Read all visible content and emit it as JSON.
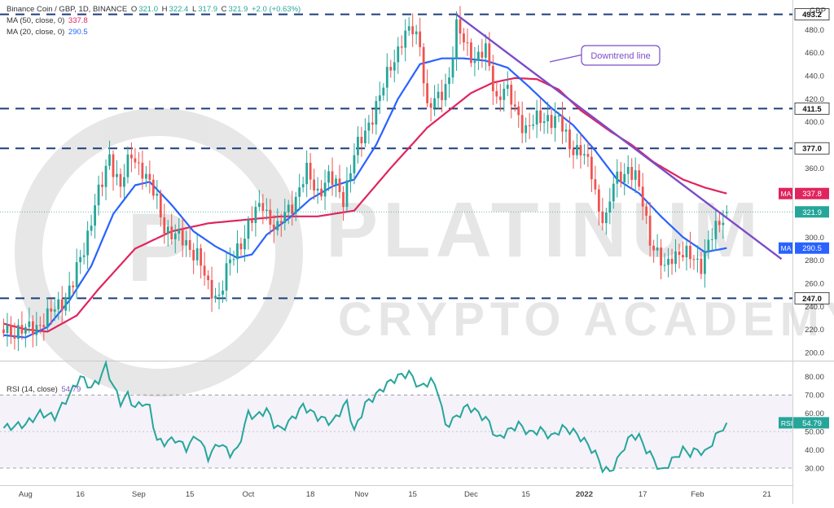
{
  "legend": {
    "symbol": "Binance Coin / GBP, 1D, BINANCE",
    "ohlc": {
      "o_label": "O",
      "o": "321.0",
      "h_label": "H",
      "h": "322.4",
      "l_label": "L",
      "l": "317.9",
      "c_label": "C",
      "c": "321.9",
      "change": "+2.0 (+0.63%)"
    },
    "ma50_label": "MA (50, close, 0)",
    "ma50_value": "337.8",
    "ma20_label": "MA (20, close, 0)",
    "ma20_value": "290.5",
    "rsi_label": "RSI (14, close)",
    "rsi_value": "54.79"
  },
  "currency": "GBP",
  "annotation": "Downtrend line",
  "watermark": {
    "line1": "PLATINUM",
    "line2": "CRYPTO ACADEMY"
  },
  "colors": {
    "up": "#26a69a",
    "down": "#ef5350",
    "ma50": "#e0245e",
    "ma20": "#2962ff",
    "rsi": "#26a69a",
    "trendline": "#7b4cc9",
    "level": "#1e3f7a"
  },
  "chart_data": [
    {
      "type": "candlestick",
      "title": "Binance Coin / GBP, 1D, BINANCE",
      "ylim": [
        195,
        500
      ],
      "y_ticks": [
        200,
        220,
        240,
        260,
        280,
        300,
        320,
        340,
        360,
        380,
        400,
        420,
        440,
        460,
        480
      ],
      "x_ticks": [
        "Aug",
        "16",
        "Sep",
        "15",
        "Oct",
        "18",
        "Nov",
        "15",
        "Dec",
        "15",
        "2022",
        "17",
        "Feb",
        "21"
      ],
      "x_tick_days": [
        0,
        15,
        31,
        45,
        61,
        78,
        92,
        106,
        122,
        137,
        153,
        169,
        184,
        203
      ],
      "x_range": [
        -7,
        210
      ],
      "horizontal_levels": [
        {
          "value": 493.2,
          "label": "493.2"
        },
        {
          "value": 411.5,
          "label": "411.5"
        },
        {
          "value": 377.0,
          "label": "377.0"
        },
        {
          "value": 247.0,
          "label": "247.0"
        }
      ],
      "current_price": {
        "value": 321.9,
        "label": "321.9"
      },
      "ma50_tag": {
        "label": "MA",
        "value": 337.8,
        "text": "337.8"
      },
      "ma20_tag": {
        "label": "MA",
        "value": 290.5,
        "text": "290.5"
      },
      "trendline": {
        "from": {
          "day": 118,
          "price": 493
        },
        "to": {
          "day": 207,
          "price": 281
        }
      },
      "close_anchors": [
        [
          -6,
          220
        ],
        [
          0,
          218
        ],
        [
          6,
          230
        ],
        [
          10,
          245
        ],
        [
          13,
          260
        ],
        [
          16,
          290
        ],
        [
          19,
          330
        ],
        [
          21,
          345
        ],
        [
          23,
          370
        ],
        [
          26,
          345
        ],
        [
          29,
          370
        ],
        [
          32,
          360
        ],
        [
          36,
          330
        ],
        [
          38,
          310
        ],
        [
          41,
          300
        ],
        [
          44,
          295
        ],
        [
          47,
          285
        ],
        [
          50,
          255
        ],
        [
          53,
          250
        ],
        [
          55,
          270
        ],
        [
          58,
          290
        ],
        [
          61,
          310
        ],
        [
          63,
          320
        ],
        [
          65,
          330
        ],
        [
          67,
          315
        ],
        [
          69,
          305
        ],
        [
          71,
          320
        ],
        [
          74,
          335
        ],
        [
          77,
          355
        ],
        [
          80,
          340
        ],
        [
          83,
          350
        ],
        [
          85,
          345
        ],
        [
          87,
          335
        ],
        [
          90,
          370
        ],
        [
          94,
          400
        ],
        [
          97,
          420
        ],
        [
          100,
          450
        ],
        [
          103,
          470
        ],
        [
          106,
          480
        ],
        [
          108,
          470
        ],
        [
          110,
          410
        ],
        [
          113,
          420
        ],
        [
          116,
          440
        ],
        [
          118,
          480
        ],
        [
          120,
          470
        ],
        [
          123,
          455
        ],
        [
          126,
          460
        ],
        [
          129,
          420
        ],
        [
          131,
          430
        ],
        [
          134,
          410
        ],
        [
          137,
          395
        ],
        [
          140,
          400
        ],
        [
          143,
          405
        ],
        [
          146,
          400
        ],
        [
          149,
          380
        ],
        [
          152,
          375
        ],
        [
          155,
          355
        ],
        [
          157,
          325
        ],
        [
          159,
          315
        ],
        [
          161,
          345
        ],
        [
          163,
          355
        ],
        [
          165,
          360
        ],
        [
          167,
          350
        ],
        [
          169,
          330
        ],
        [
          171,
          300
        ],
        [
          173,
          285
        ],
        [
          175,
          270
        ],
        [
          177,
          285
        ],
        [
          179,
          288
        ],
        [
          181,
          283
        ],
        [
          183,
          280
        ],
        [
          185,
          278
        ],
        [
          187,
          295
        ],
        [
          189,
          305
        ],
        [
          191,
          318
        ],
        [
          192,
          321.9
        ]
      ],
      "ma20_anchors": [
        [
          -6,
          215
        ],
        [
          0,
          213
        ],
        [
          6,
          222
        ],
        [
          12,
          245
        ],
        [
          18,
          275
        ],
        [
          24,
          320
        ],
        [
          30,
          345
        ],
        [
          34,
          348
        ],
        [
          40,
          328
        ],
        [
          46,
          305
        ],
        [
          52,
          292
        ],
        [
          58,
          282
        ],
        [
          62,
          285
        ],
        [
          66,
          302
        ],
        [
          72,
          316
        ],
        [
          78,
          333
        ],
        [
          84,
          344
        ],
        [
          90,
          350
        ],
        [
          96,
          380
        ],
        [
          102,
          420
        ],
        [
          108,
          450
        ],
        [
          114,
          455
        ],
        [
          120,
          455
        ],
        [
          126,
          453
        ],
        [
          132,
          447
        ],
        [
          138,
          430
        ],
        [
          144,
          412
        ],
        [
          150,
          397
        ],
        [
          156,
          375
        ],
        [
          162,
          350
        ],
        [
          168,
          338
        ],
        [
          174,
          318
        ],
        [
          180,
          300
        ],
        [
          186,
          287
        ],
        [
          192,
          290.5
        ]
      ],
      "ma50_anchors": [
        [
          -6,
          225
        ],
        [
          0,
          220
        ],
        [
          6,
          218
        ],
        [
          14,
          232
        ],
        [
          20,
          255
        ],
        [
          30,
          290
        ],
        [
          40,
          305
        ],
        [
          50,
          312
        ],
        [
          60,
          315
        ],
        [
          70,
          318
        ],
        [
          80,
          318
        ],
        [
          90,
          323
        ],
        [
          100,
          360
        ],
        [
          110,
          395
        ],
        [
          116,
          410
        ],
        [
          122,
          425
        ],
        [
          128,
          434
        ],
        [
          134,
          438
        ],
        [
          140,
          437
        ],
        [
          146,
          428
        ],
        [
          152,
          410
        ],
        [
          160,
          392
        ],
        [
          166,
          380
        ],
        [
          172,
          365
        ],
        [
          180,
          350
        ],
        [
          186,
          343
        ],
        [
          192,
          337.8
        ]
      ]
    },
    {
      "type": "line",
      "title": "RSI (14, close)",
      "ylim": [
        22,
        87
      ],
      "y_ticks": [
        30,
        40,
        50,
        60,
        70,
        80
      ],
      "band": [
        30,
        70
      ],
      "midline": 50,
      "value_tag": {
        "label": "RSI",
        "value": 54.79,
        "text": "54.79"
      },
      "rsi_anchors": [
        [
          -6,
          52
        ],
        [
          0,
          54
        ],
        [
          4,
          60
        ],
        [
          8,
          58
        ],
        [
          12,
          70
        ],
        [
          15,
          80
        ],
        [
          18,
          74
        ],
        [
          20,
          78
        ],
        [
          22,
          86
        ],
        [
          24,
          75
        ],
        [
          26,
          66
        ],
        [
          28,
          70
        ],
        [
          30,
          63
        ],
        [
          32,
          66
        ],
        [
          34,
          63
        ],
        [
          36,
          45
        ],
        [
          38,
          44
        ],
        [
          41,
          46
        ],
        [
          44,
          41
        ],
        [
          47,
          48
        ],
        [
          50,
          36
        ],
        [
          53,
          44
        ],
        [
          56,
          38
        ],
        [
          58,
          40
        ],
        [
          61,
          60
        ],
        [
          63,
          58
        ],
        [
          66,
          62
        ],
        [
          68,
          54
        ],
        [
          70,
          51
        ],
        [
          73,
          57
        ],
        [
          76,
          64
        ],
        [
          80,
          58
        ],
        [
          84,
          55
        ],
        [
          88,
          66
        ],
        [
          90,
          50
        ],
        [
          93,
          65
        ],
        [
          96,
          70
        ],
        [
          99,
          76
        ],
        [
          102,
          80
        ],
        [
          105,
          82
        ],
        [
          108,
          74
        ],
        [
          111,
          78
        ],
        [
          113,
          72
        ],
        [
          115,
          53
        ],
        [
          118,
          58
        ],
        [
          121,
          64
        ],
        [
          124,
          60
        ],
        [
          127,
          55
        ],
        [
          129,
          46
        ],
        [
          132,
          50
        ],
        [
          135,
          54
        ],
        [
          138,
          49
        ],
        [
          141,
          51
        ],
        [
          144,
          47
        ],
        [
          147,
          52
        ],
        [
          150,
          50
        ],
        [
          153,
          45
        ],
        [
          156,
          38
        ],
        [
          158,
          30
        ],
        [
          160,
          28
        ],
        [
          162,
          34
        ],
        [
          164,
          42
        ],
        [
          166,
          48
        ],
        [
          168,
          47
        ],
        [
          170,
          40
        ],
        [
          172,
          35
        ],
        [
          174,
          28
        ],
        [
          176,
          32
        ],
        [
          178,
          36
        ],
        [
          180,
          40
        ],
        [
          182,
          38
        ],
        [
          184,
          40
        ],
        [
          186,
          38
        ],
        [
          188,
          44
        ],
        [
          190,
          50
        ],
        [
          192,
          54.79
        ]
      ]
    }
  ]
}
